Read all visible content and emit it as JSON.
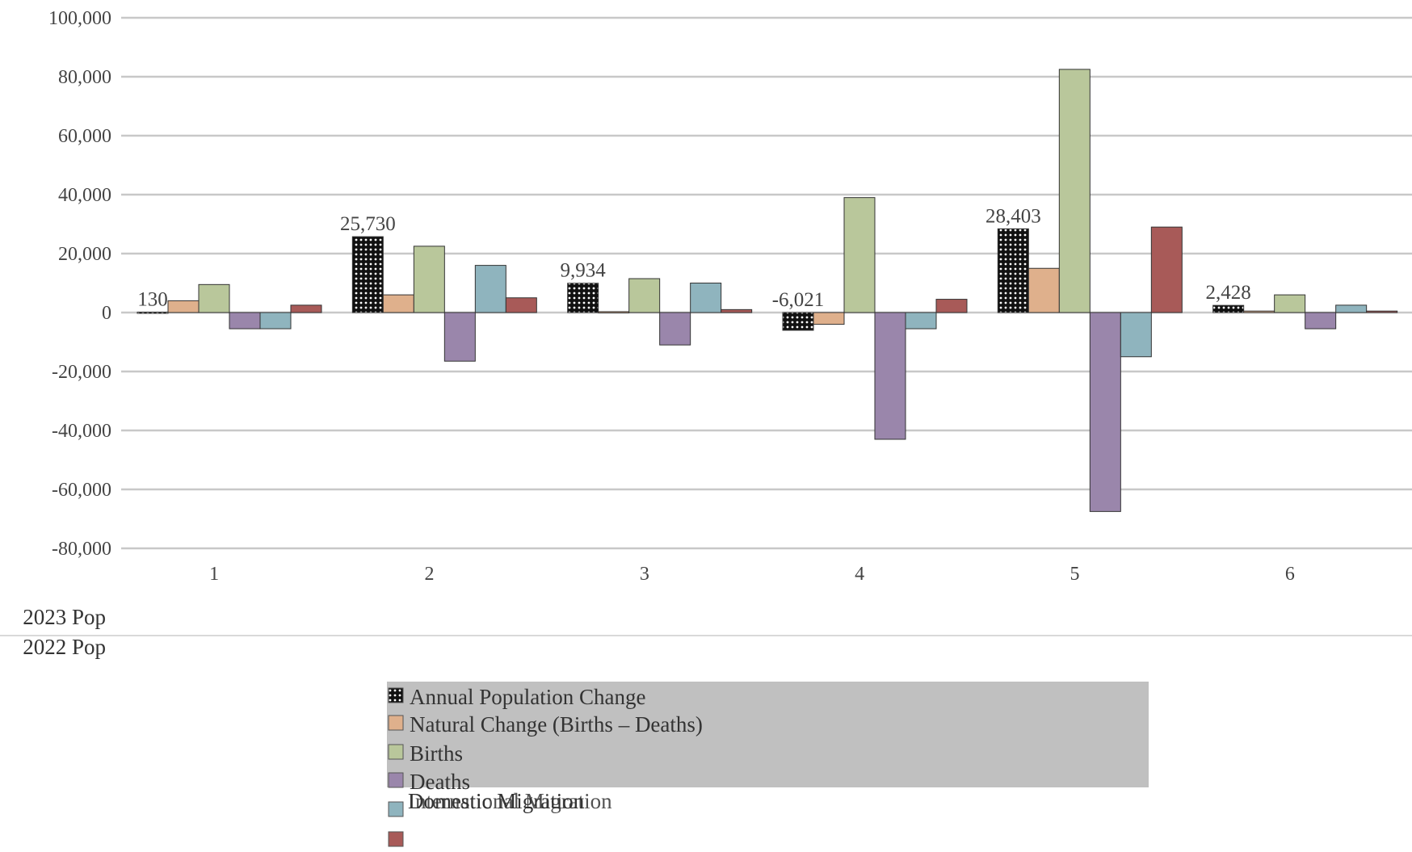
{
  "chart_data": {
    "type": "bar",
    "categories": [
      "1",
      "2",
      "3",
      "4",
      "5",
      "6"
    ],
    "ylim": [
      -80000,
      100000
    ],
    "yticks": [
      100000,
      80000,
      60000,
      40000,
      20000,
      0,
      -20000,
      -40000,
      -60000,
      -80000
    ],
    "ytick_labels": [
      "100,000",
      "80,000",
      "60,000",
      "40,000",
      "20,000",
      "0",
      "-20,000",
      "-40,000",
      "-60,000",
      "-80,000"
    ],
    "grid": true,
    "legend_position": "bottom",
    "series": [
      {
        "name": "Annual Population Change",
        "color": "#111111",
        "pattern": "dots",
        "values": [
          130,
          25730,
          9934,
          -6021,
          28403,
          2428
        ],
        "data_labels": [
          "130",
          "25,730",
          "9,934",
          "-6,021",
          "28,403",
          "2,428"
        ]
      },
      {
        "name": "Natural Change (Births – Deaths)",
        "color": "#dfb08c",
        "values": [
          4000,
          6000,
          300,
          -4000,
          15000,
          500
        ]
      },
      {
        "name": "Births",
        "color": "#b9c79b",
        "values": [
          9500,
          22500,
          11500,
          39000,
          82500,
          6000
        ]
      },
      {
        "name": "Deaths",
        "color": "#9a86ab",
        "values": [
          -5500,
          -16500,
          -11000,
          -43000,
          -67500,
          -5500
        ]
      },
      {
        "name": "Domestic Migration",
        "color": "#8fb4be",
        "values": [
          -5500,
          16000,
          10000,
          -5500,
          -15000,
          2500
        ]
      },
      {
        "name": "International Migration",
        "color": "#a85a58",
        "values": [
          2500,
          5000,
          1000,
          4500,
          29000,
          500
        ]
      }
    ],
    "table_rows": [
      "2023 Pop",
      "2022 Pop"
    ]
  }
}
